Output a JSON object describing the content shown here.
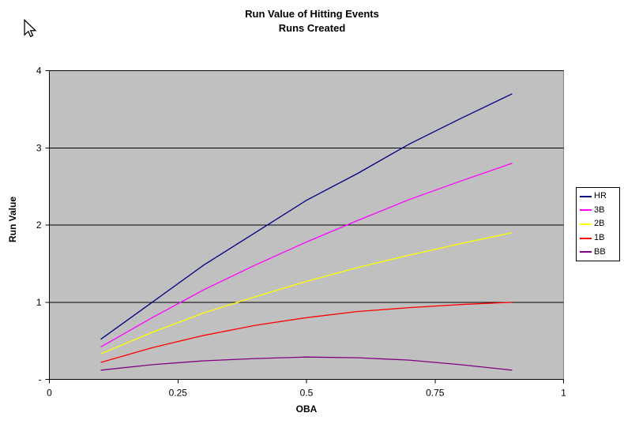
{
  "chart_data": {
    "type": "line",
    "title": "Run Value of Hitting Events",
    "subtitle": "Runs Created",
    "xlabel": "OBA",
    "ylabel": "Run Value",
    "xlim": [
      0,
      1
    ],
    "ylim": [
      0,
      4
    ],
    "x_ticks": [
      0,
      0.25,
      0.5,
      0.75,
      1
    ],
    "x_tick_labels": [
      "0",
      "0.25",
      "0.5",
      "0.75",
      "1"
    ],
    "y_ticks": [
      0,
      1,
      2,
      3,
      4
    ],
    "y_tick_labels": [
      "-",
      "1",
      "2",
      "3",
      "4"
    ],
    "grid": "horizontal-black",
    "plot_bg_color": "#c0c0c0",
    "plot_border_color": "#808080",
    "axis_color": "#000000",
    "legend_position": "right",
    "x": [
      0.1,
      0.2,
      0.3,
      0.4,
      0.5,
      0.6,
      0.7,
      0.8,
      0.9
    ],
    "series": [
      {
        "name": "HR",
        "color": "#000080",
        "values": [
          0.52,
          1.0,
          1.48,
          1.9,
          2.32,
          2.67,
          3.05,
          3.38,
          3.7
        ]
      },
      {
        "name": "3B",
        "color": "#ff00ff",
        "values": [
          0.42,
          0.8,
          1.16,
          1.48,
          1.78,
          2.06,
          2.33,
          2.57,
          2.8
        ]
      },
      {
        "name": "2B",
        "color": "#ffff00",
        "values": [
          0.33,
          0.61,
          0.86,
          1.07,
          1.27,
          1.45,
          1.61,
          1.76,
          1.9
        ]
      },
      {
        "name": "1B",
        "color": "#ff0000",
        "values": [
          0.22,
          0.41,
          0.57,
          0.7,
          0.8,
          0.88,
          0.93,
          0.97,
          1.0
        ]
      },
      {
        "name": "BB",
        "color": "#800080",
        "values": [
          0.12,
          0.19,
          0.24,
          0.27,
          0.29,
          0.28,
          0.25,
          0.19,
          0.12
        ]
      }
    ]
  }
}
